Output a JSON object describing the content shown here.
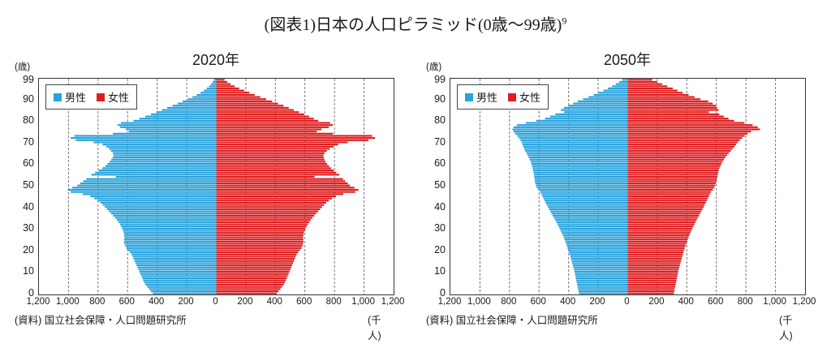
{
  "page": {
    "title": "(図表1)日本の人口ピラミッド(0歳〜99歳)",
    "footnote_marker": "9",
    "source": "(資料) 国立社会保障・人口問題研究所",
    "unit_label": "(千人)",
    "y_axis_unit": "(歳)"
  },
  "legend": {
    "male_label": "男性",
    "female_label": "女性"
  },
  "colors": {
    "male": "#2aa3dc",
    "female": "#e01e20",
    "grid": "#777777",
    "border": "#333333"
  },
  "axis": {
    "y_ticks": [
      99,
      90,
      80,
      70,
      60,
      50,
      40,
      30,
      20,
      10,
      0
    ],
    "x_tick_labels": [
      "1,200",
      "1,000",
      "800",
      "600",
      "400",
      "200",
      "0",
      "200",
      "400",
      "600",
      "800",
      "1,000",
      "1,200"
    ],
    "x_tick_values": [
      -1200,
      -1000,
      -800,
      -600,
      -400,
      -200,
      0,
      200,
      400,
      600,
      800,
      1000,
      1200
    ],
    "grid_step": 200
  },
  "chart_data": [
    {
      "type": "bar",
      "subtype": "population-pyramid",
      "title": "2020年",
      "xlabel": "(千人)",
      "ylabel": "(歳)",
      "xlim": [
        -1200,
        1200
      ],
      "age_min": 0,
      "age_max": 99,
      "grid": "dashed-vertical-every-200",
      "legend_position": "top-left-inside",
      "series": [
        {
          "name": "男性",
          "side": "left",
          "color": "#2aa3dc",
          "values": [
            430,
            443,
            455,
            467,
            478,
            487,
            494,
            500,
            507,
            514,
            520,
            527,
            533,
            540,
            547,
            553,
            560,
            566,
            573,
            585,
            598,
            608,
            616,
            622,
            625,
            624,
            622,
            623,
            626,
            631,
            637,
            644,
            652,
            662,
            673,
            685,
            698,
            712,
            726,
            740,
            754,
            768,
            784,
            803,
            826,
            853,
            905,
            985,
            1005,
            975,
            940,
            920,
            900,
            880,
            680,
            845,
            820,
            795,
            772,
            752,
            737,
            722,
            710,
            701,
            696,
            700,
            712,
            726,
            745,
            770,
            830,
            950,
            985,
            960,
            700,
            592,
            612,
            650,
            668,
            645,
            560,
            520,
            480,
            442,
            405,
            368,
            332,
            296,
            261,
            227,
            193,
            161,
            132,
            106,
            84,
            65,
            48,
            35,
            24,
            16
          ]
        },
        {
          "name": "女性",
          "side": "right",
          "color": "#e01e20",
          "values": [
            410,
            422,
            434,
            445,
            456,
            464,
            470,
            477,
            483,
            489,
            495,
            501,
            507,
            513,
            519,
            525,
            531,
            537,
            543,
            553,
            565,
            576,
            583,
            588,
            590,
            589,
            588,
            590,
            593,
            598,
            604,
            611,
            619,
            628,
            639,
            651,
            663,
            676,
            690,
            703,
            716,
            729,
            744,
            762,
            784,
            810,
            860,
            940,
            962,
            935,
            905,
            890,
            873,
            858,
            665,
            832,
            812,
            795,
            778,
            763,
            750,
            740,
            732,
            727,
            725,
            733,
            748,
            768,
            795,
            825,
            890,
            1030,
            1075,
            1055,
            790,
            680,
            712,
            762,
            788,
            770,
            690,
            660,
            628,
            595,
            560,
            525,
            490,
            455,
            418,
            378,
            338,
            298,
            260,
            224,
            189,
            155,
            125,
            98,
            75,
            56
          ]
        }
      ]
    },
    {
      "type": "bar",
      "subtype": "population-pyramid",
      "title": "2050年",
      "xlabel": "(千人)",
      "ylabel": "(歳)",
      "xlim": [
        -1200,
        1200
      ],
      "age_min": 0,
      "age_max": 99,
      "grid": "dashed-vertical-every-200",
      "legend_position": "top-left-inside",
      "series": [
        {
          "name": "男性",
          "side": "left",
          "color": "#2aa3dc",
          "values": [
            330,
            333,
            336,
            339,
            342,
            345,
            348,
            351,
            354,
            357,
            360,
            364,
            368,
            372,
            376,
            380,
            384,
            388,
            392,
            397,
            402,
            407,
            412,
            417,
            422,
            428,
            434,
            440,
            447,
            454,
            461,
            468,
            475,
            483,
            491,
            500,
            508,
            516,
            524,
            532,
            540,
            548,
            556,
            563,
            570,
            577,
            584,
            592,
            605,
            615,
            622,
            626,
            629,
            631,
            633,
            635,
            637,
            640,
            644,
            648,
            652,
            657,
            663,
            670,
            678,
            686,
            694,
            701,
            707,
            712,
            718,
            726,
            736,
            748,
            762,
            772,
            780,
            772,
            750,
            690,
            620,
            560,
            525,
            490,
            430,
            452,
            432,
            402,
            370,
            338,
            302,
            265,
            230,
            196,
            164,
            134,
            106,
            81,
            58,
            38
          ]
        },
        {
          "name": "女性",
          "side": "right",
          "color": "#e01e20",
          "values": [
            312,
            315,
            318,
            321,
            324,
            327,
            330,
            333,
            336,
            339,
            342,
            345,
            349,
            353,
            357,
            361,
            365,
            369,
            373,
            377,
            381,
            386,
            391,
            396,
            401,
            406,
            412,
            418,
            424,
            430,
            437,
            444,
            451,
            458,
            466,
            474,
            482,
            490,
            498,
            506,
            514,
            521,
            528,
            535,
            542,
            549,
            556,
            564,
            576,
            586,
            592,
            596,
            600,
            603,
            606,
            609,
            612,
            616,
            621,
            627,
            634,
            642,
            651,
            661,
            672,
            684,
            697,
            710,
            722,
            733,
            744,
            758,
            774,
            792,
            812,
            835,
            895,
            880,
            845,
            790,
            720,
            682,
            650,
            620,
            550,
            615,
            605,
            598,
            575,
            545,
            492,
            452,
            412,
            372,
            336,
            305,
            268,
            233,
            200,
            166
          ]
        }
      ]
    }
  ]
}
